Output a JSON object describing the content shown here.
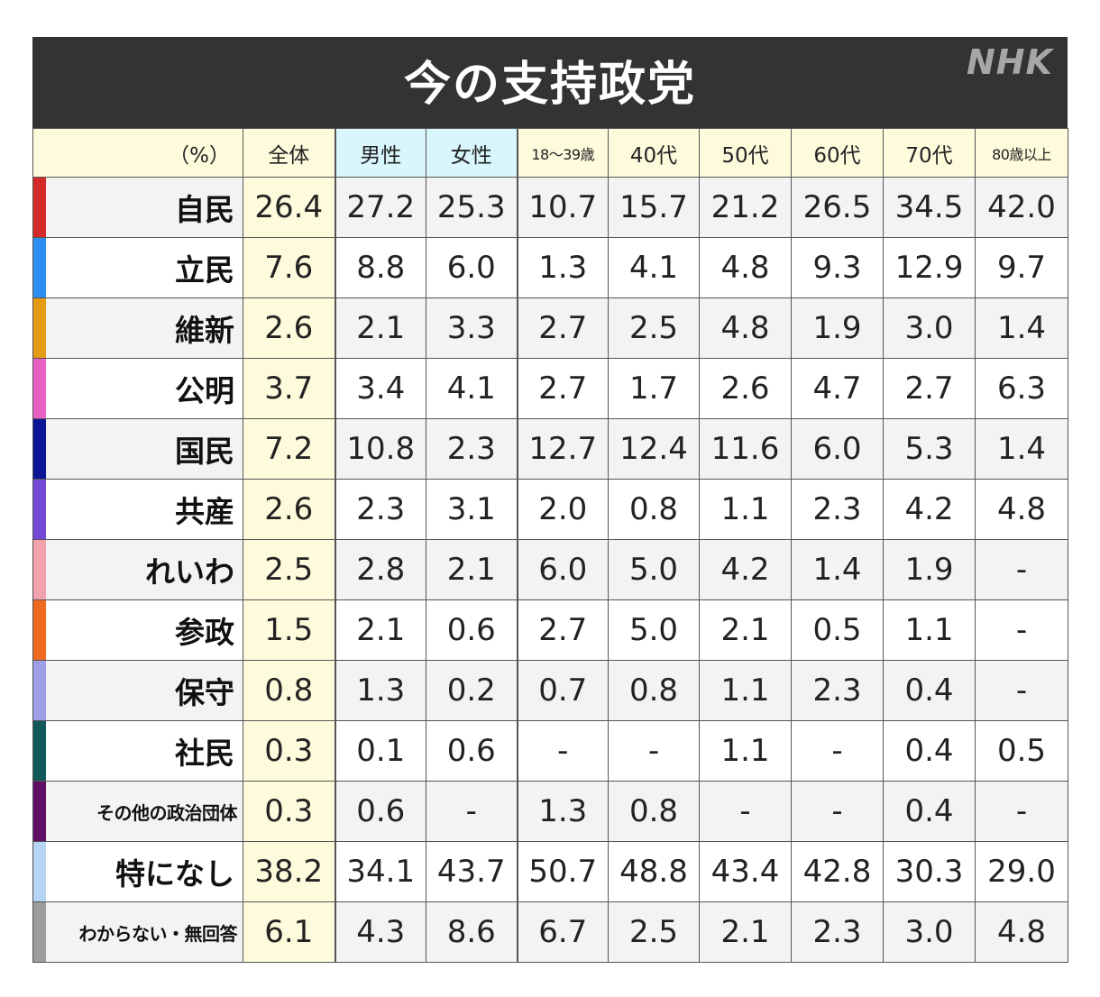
{
  "chart_data": {
    "type": "table",
    "title": "今の支持政党",
    "logo": "NHK",
    "corner_label": "（%）",
    "columns": [
      "全体",
      "男性",
      "女性",
      "18～39歳",
      "40代",
      "50代",
      "60代",
      "70代",
      "80歳以上"
    ],
    "rows": [
      {
        "party": "自民",
        "color": "#d42a2a",
        "values": [
          "26.4",
          "27.2",
          "25.3",
          "10.7",
          "15.7",
          "21.2",
          "26.5",
          "34.5",
          "42.0"
        ]
      },
      {
        "party": "立民",
        "color": "#2f8ff0",
        "values": [
          "7.6",
          "8.8",
          "6.0",
          "1.3",
          "4.1",
          "4.8",
          "9.3",
          "12.9",
          "9.7"
        ]
      },
      {
        "party": "維新",
        "color": "#e59b15",
        "values": [
          "2.6",
          "2.1",
          "3.3",
          "2.7",
          "2.5",
          "4.8",
          "1.9",
          "3.0",
          "1.4"
        ]
      },
      {
        "party": "公明",
        "color": "#ea5fc6",
        "values": [
          "3.7",
          "3.4",
          "4.1",
          "2.7",
          "1.7",
          "2.6",
          "4.7",
          "2.7",
          "6.3"
        ]
      },
      {
        "party": "国民",
        "color": "#0c1694",
        "values": [
          "7.2",
          "10.8",
          "2.3",
          "12.7",
          "12.4",
          "11.6",
          "6.0",
          "5.3",
          "1.4"
        ]
      },
      {
        "party": "共産",
        "color": "#7448d6",
        "values": [
          "2.6",
          "2.3",
          "3.1",
          "2.0",
          "0.8",
          "1.1",
          "2.3",
          "4.2",
          "4.8"
        ]
      },
      {
        "party": "れいわ",
        "color": "#f1a2ac",
        "values": [
          "2.5",
          "2.8",
          "2.1",
          "6.0",
          "5.0",
          "4.2",
          "1.4",
          "1.9",
          "-"
        ]
      },
      {
        "party": "参政",
        "color": "#ee6a1e",
        "values": [
          "1.5",
          "2.1",
          "0.6",
          "2.7",
          "5.0",
          "2.1",
          "0.5",
          "1.1",
          "-"
        ]
      },
      {
        "party": "保守",
        "color": "#9f9ee6",
        "values": [
          "0.8",
          "1.3",
          "0.2",
          "0.7",
          "0.8",
          "1.1",
          "2.3",
          "0.4",
          "-"
        ]
      },
      {
        "party": "社民",
        "color": "#12585a",
        "values": [
          "0.3",
          "0.1",
          "0.6",
          "-",
          "-",
          "1.1",
          "-",
          "0.4",
          "0.5"
        ]
      },
      {
        "party": "その他の政治団体",
        "color": "#5f0f63",
        "values": [
          "0.3",
          "0.6",
          "-",
          "1.3",
          "0.8",
          "-",
          "-",
          "0.4",
          "-"
        ]
      },
      {
        "party": "特になし",
        "color": "#b6d4f4",
        "values": [
          "38.2",
          "34.1",
          "43.7",
          "50.7",
          "48.8",
          "43.4",
          "42.8",
          "30.3",
          "29.0"
        ]
      },
      {
        "party": "わからない・無回答",
        "color": "#9c9c9c",
        "values": [
          "6.1",
          "4.3",
          "8.6",
          "6.7",
          "2.5",
          "2.1",
          "2.3",
          "3.0",
          "4.8"
        ]
      }
    ]
  }
}
